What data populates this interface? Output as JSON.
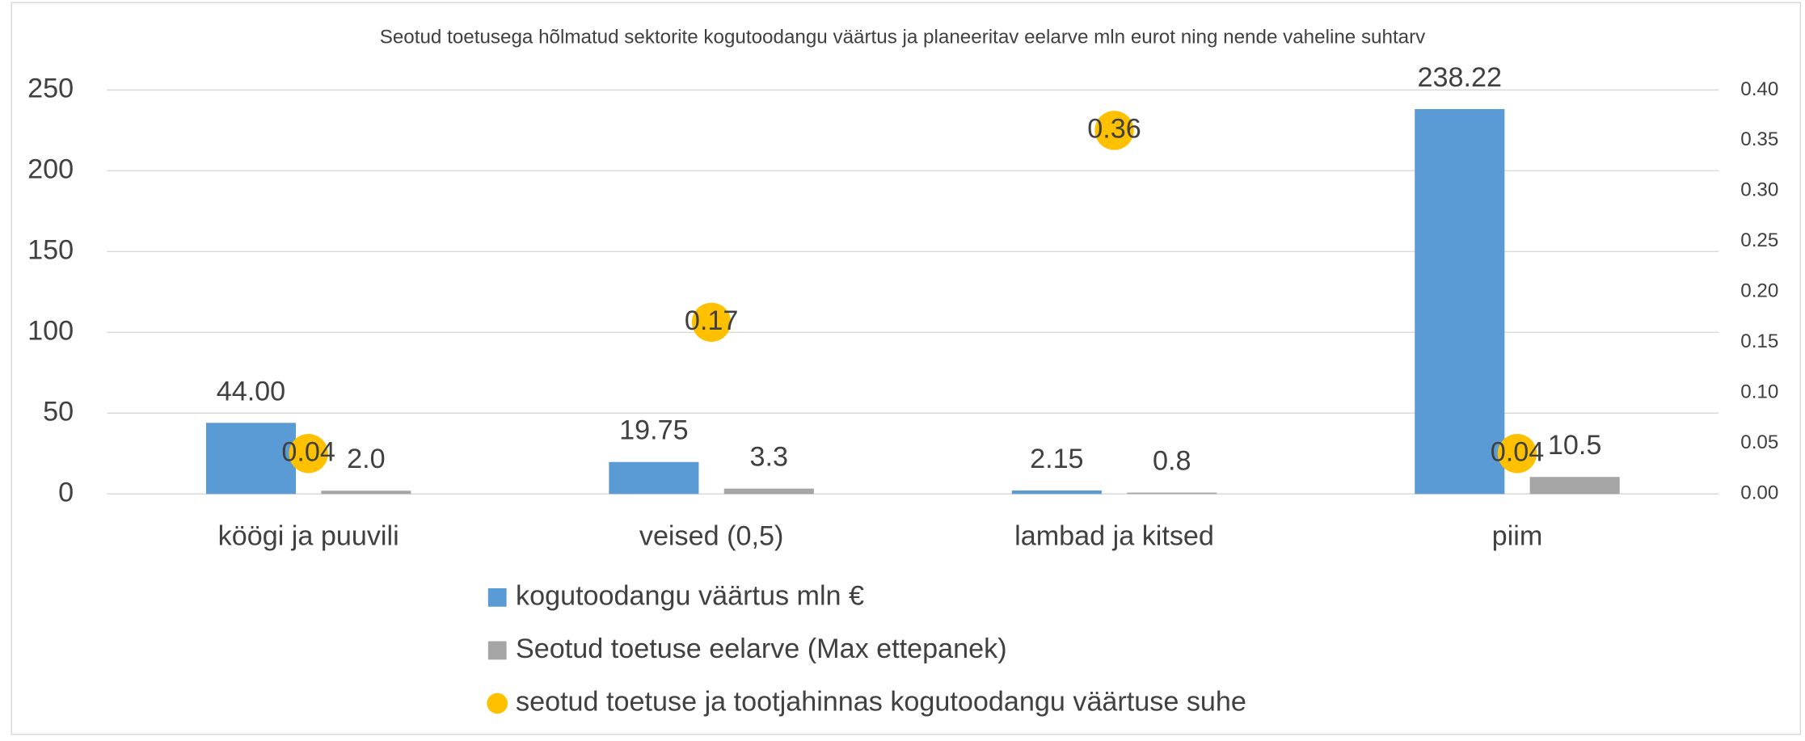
{
  "chart_data": {
    "type": "bar",
    "title": "Seotud toetusega hõlmatud sektorite kogutoodangu väärtus ja planeeritav eelarve mln eurot ning nende vaheline suhtarv",
    "categories": [
      "köögi ja puuvili",
      "veised (0,5)",
      "lambad ja kitsed",
      "piim"
    ],
    "series": [
      {
        "name": "kogutoodangu väärtus mln €",
        "type": "bar",
        "color": "#5b9bd5",
        "values": [
          44.0,
          19.75,
          2.15,
          238.22
        ],
        "value_labels": [
          "44.00",
          "19.75",
          "2.15",
          "238.22"
        ]
      },
      {
        "name": "Seotud toetuse eelarve (Max ettepanek)",
        "type": "bar",
        "color": "#a5a5a5",
        "values": [
          2.0,
          3.3,
          0.8,
          10.5
        ],
        "value_labels": [
          "2.0",
          "3.3",
          "0.8",
          "10.5"
        ]
      },
      {
        "name": "seotud toetuse ja tootjahinnas kogutoodangu väärtuse suhe",
        "type": "scatter",
        "axis": "y2",
        "color": "#ffc000",
        "values": [
          0.04,
          0.17,
          0.36,
          0.04
        ]
      }
    ],
    "ylim": [
      0,
      250
    ],
    "yticks": [
      0,
      50,
      100,
      150,
      200,
      250
    ],
    "y2lim": [
      0,
      0.4
    ],
    "y2ticks": [
      {
        "value": 0,
        "label": "0.00"
      },
      {
        "value": 0.05,
        "label": "0.05"
      },
      {
        "value": 0.1,
        "label": "0.10"
      },
      {
        "value": 0.15,
        "label": "0.15"
      },
      {
        "value": 0.2,
        "label": "0.20"
      },
      {
        "value": 0.25,
        "label": "0.25"
      },
      {
        "value": 0.3,
        "label": "0.30"
      },
      {
        "value": 0.35,
        "label": "0.35"
      },
      {
        "value": 0.4,
        "label": "0.40"
      }
    ],
    "grid": true,
    "legend": "bottom"
  }
}
